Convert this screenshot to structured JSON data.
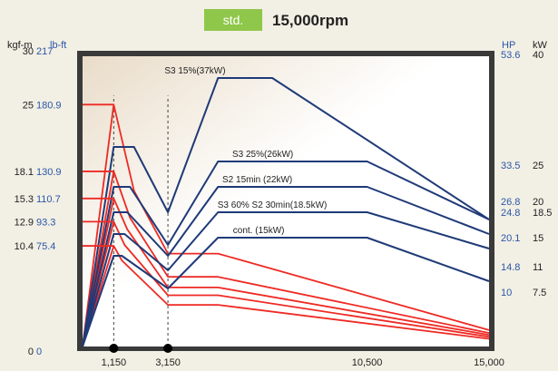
{
  "header": {
    "badge": "std.",
    "title": "15,000rpm",
    "badge_color": "#8fc74a"
  },
  "colors": {
    "power": "#1f3a78",
    "torque": "#ee2a24",
    "frame": "#3a3a3a",
    "plot_bg_left": "#e9dcc8",
    "plot_bg_right": "#ffffff"
  },
  "chart_data": {
    "type": "line",
    "x_axis": {
      "range": [
        0,
        15000
      ],
      "ticks": [
        {
          "value": 1150,
          "label": "1,150"
        },
        {
          "value": 3150,
          "label": "3,150"
        },
        {
          "value": 10500,
          "label": "10,500"
        },
        {
          "value": 15000,
          "label": "15,000"
        }
      ],
      "marker_dots": [
        1150,
        3150
      ],
      "dashed_lines": [
        1150,
        3150
      ]
    },
    "left_axis": {
      "unit_kgfm": "kgf-m",
      "unit_lbft": "lb-ft",
      "range_kgfm": [
        0,
        30
      ],
      "ticks": [
        {
          "kgfm": 30,
          "kgfm_label": "30",
          "lbft_label": "217",
          "frame": true
        },
        {
          "kgfm": 25,
          "kgfm_label": "25",
          "lbft_label": "180.9"
        },
        {
          "kgfm": 18.1,
          "kgfm_label": "18.1",
          "lbft_label": "130.9"
        },
        {
          "kgfm": 15.3,
          "kgfm_label": "15.3",
          "lbft_label": "110.7"
        },
        {
          "kgfm": 12.9,
          "kgfm_label": "12.9",
          "lbft_label": "93.3"
        },
        {
          "kgfm": 10.4,
          "kgfm_label": "10.4",
          "lbft_label": "75.4"
        },
        {
          "kgfm": 0,
          "kgfm_label": "0",
          "lbft_label": "0",
          "frame": true
        }
      ]
    },
    "right_axis": {
      "unit_hp": "HP",
      "unit_kw": "kW",
      "range_kw": [
        0,
        40
      ],
      "ticks": [
        {
          "kw": 40,
          "hp_label": "53.6",
          "kw_label": "40",
          "frame": true
        },
        {
          "kw": 25,
          "hp_label": "33.5",
          "kw_label": "25"
        },
        {
          "kw": 20,
          "hp_label": "26.8",
          "kw_label": "20"
        },
        {
          "kw": 18.5,
          "hp_label": "24.8",
          "kw_label": "18.5"
        },
        {
          "kw": 15,
          "hp_label": "20.1",
          "kw_label": "15"
        },
        {
          "kw": 11,
          "hp_label": "14.8",
          "kw_label": "11"
        },
        {
          "kw": 7.5,
          "hp_label": "10",
          "kw_label": "7.5"
        }
      ]
    },
    "power_series": [
      {
        "name": "S3 15%(37kW)",
        "points": [
          [
            0,
            0
          ],
          [
            1150,
            27.5
          ],
          [
            1900,
            27.5
          ],
          [
            3150,
            18.5
          ],
          [
            5000,
            37
          ],
          [
            7000,
            37
          ],
          [
            15000,
            17.5
          ]
        ]
      },
      {
        "name": "S3 25%(26kW)",
        "points": [
          [
            0,
            0
          ],
          [
            1150,
            22
          ],
          [
            1750,
            22
          ],
          [
            3150,
            14
          ],
          [
            5000,
            25.5
          ],
          [
            10500,
            25.5
          ],
          [
            15000,
            17.5
          ]
        ]
      },
      {
        "name": "S2 15min (22kW)",
        "points": [
          [
            0,
            0
          ],
          [
            1150,
            18.5
          ],
          [
            1650,
            18.5
          ],
          [
            3150,
            12.5
          ],
          [
            5000,
            22
          ],
          [
            10500,
            22
          ],
          [
            15000,
            15.5
          ]
        ]
      },
      {
        "name": "S3 60% S2 30min(18.5kW)",
        "points": [
          [
            0,
            0
          ],
          [
            1150,
            15.5
          ],
          [
            1550,
            15.5
          ],
          [
            3150,
            10.5
          ],
          [
            5000,
            18.5
          ],
          [
            10500,
            18.5
          ],
          [
            15000,
            13.5
          ]
        ]
      },
      {
        "name": "cont. (15kW)",
        "points": [
          [
            0,
            0
          ],
          [
            1150,
            12.5
          ],
          [
            1450,
            12.5
          ],
          [
            3150,
            8
          ],
          [
            5000,
            15
          ],
          [
            10500,
            15
          ],
          [
            15000,
            9
          ]
        ]
      }
    ],
    "torque_series": [
      {
        "name": "S3 15%(37kW)",
        "points": [
          [
            0,
            0
          ],
          [
            1150,
            25
          ],
          [
            1900,
            16.1
          ],
          [
            3150,
            9.6
          ],
          [
            5000,
            9.6
          ],
          [
            15000,
            1.7
          ]
        ]
      },
      {
        "name": "S3 25%(26kW)",
        "points": [
          [
            0,
            0
          ],
          [
            1150,
            18.1
          ],
          [
            1750,
            13.3
          ],
          [
            3150,
            7.2
          ],
          [
            5000,
            7.2
          ],
          [
            15000,
            1.4
          ]
        ]
      },
      {
        "name": "S2 15min (22kW)",
        "points": [
          [
            0,
            0
          ],
          [
            1150,
            15.3
          ],
          [
            1650,
            12.1
          ],
          [
            3150,
            6.1
          ],
          [
            5000,
            6.1
          ],
          [
            15000,
            1.2
          ]
        ]
      },
      {
        "name": "S3 60% S2 30min(18.5kW)",
        "points": [
          [
            0,
            0
          ],
          [
            1150,
            12.9
          ],
          [
            1550,
            10.5
          ],
          [
            3150,
            5.3
          ],
          [
            5000,
            5.3
          ],
          [
            15000,
            1.0
          ]
        ]
      },
      {
        "name": "cont. (15kW)",
        "points": [
          [
            0,
            0
          ],
          [
            1150,
            10.4
          ],
          [
            1450,
            8.9
          ],
          [
            3150,
            4.3
          ],
          [
            5000,
            4.3
          ],
          [
            15000,
            0.8
          ]
        ]
      }
    ]
  }
}
